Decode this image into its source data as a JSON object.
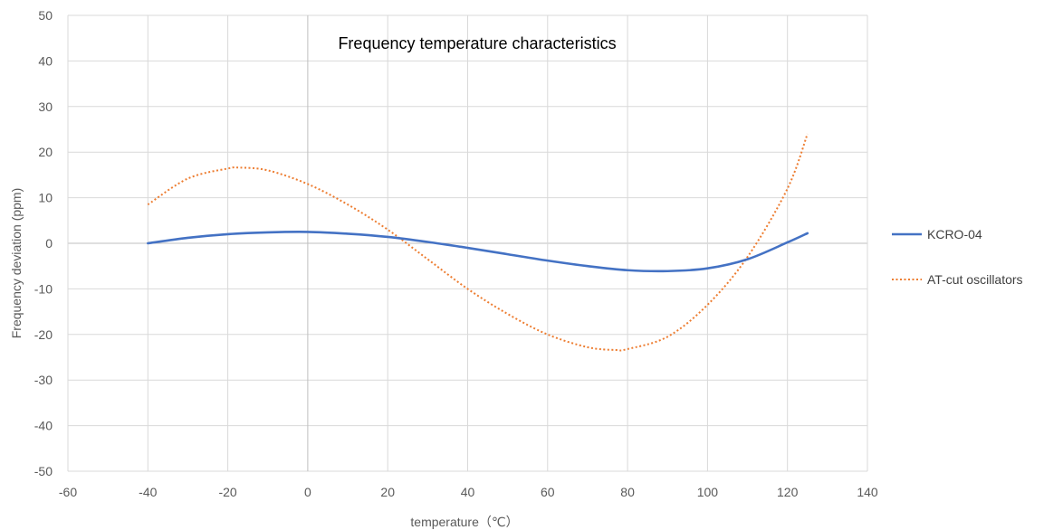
{
  "chart_data": {
    "type": "line",
    "title": "Frequency temperature characteristics",
    "xlabel": "temperature（℃）",
    "ylabel": "Frequency deviation (ppm)",
    "xlim": [
      -60,
      140
    ],
    "ylim": [
      -50,
      50
    ],
    "xticks": [
      -60,
      -40,
      -20,
      0,
      20,
      40,
      60,
      80,
      100,
      120,
      140
    ],
    "yticks": [
      -50,
      -40,
      -30,
      -20,
      -10,
      0,
      10,
      20,
      30,
      40,
      50
    ],
    "grid": true,
    "legend_position": "right",
    "series": [
      {
        "name": "KCRO-04",
        "color": "#4472C4",
        "style": "solid",
        "x": [
          -40,
          -30,
          -20,
          -10,
          0,
          10,
          20,
          30,
          40,
          50,
          60,
          70,
          80,
          90,
          100,
          110,
          120,
          125
        ],
        "y": [
          0,
          1.2,
          2.0,
          2.4,
          2.5,
          2.1,
          1.4,
          0.3,
          -1.0,
          -2.4,
          -3.8,
          -5.0,
          -5.9,
          -6.1,
          -5.5,
          -3.5,
          0.2,
          2.2
        ]
      },
      {
        "name": "AT-cut oscillators",
        "color": "#ED7D31",
        "style": "dotted",
        "x": [
          -40,
          -30,
          -20,
          -17,
          -10,
          0,
          10,
          20,
          30,
          40,
          50,
          60,
          70,
          77,
          80,
          90,
          100,
          110,
          120,
          125
        ],
        "y": [
          8.5,
          14.2,
          16.4,
          16.6,
          16.0,
          13.0,
          8.5,
          3.0,
          -3.5,
          -10.0,
          -15.5,
          -20.0,
          -22.8,
          -23.4,
          -23.2,
          -20.5,
          -13.5,
          -3.0,
          12.0,
          24.0
        ]
      }
    ]
  }
}
